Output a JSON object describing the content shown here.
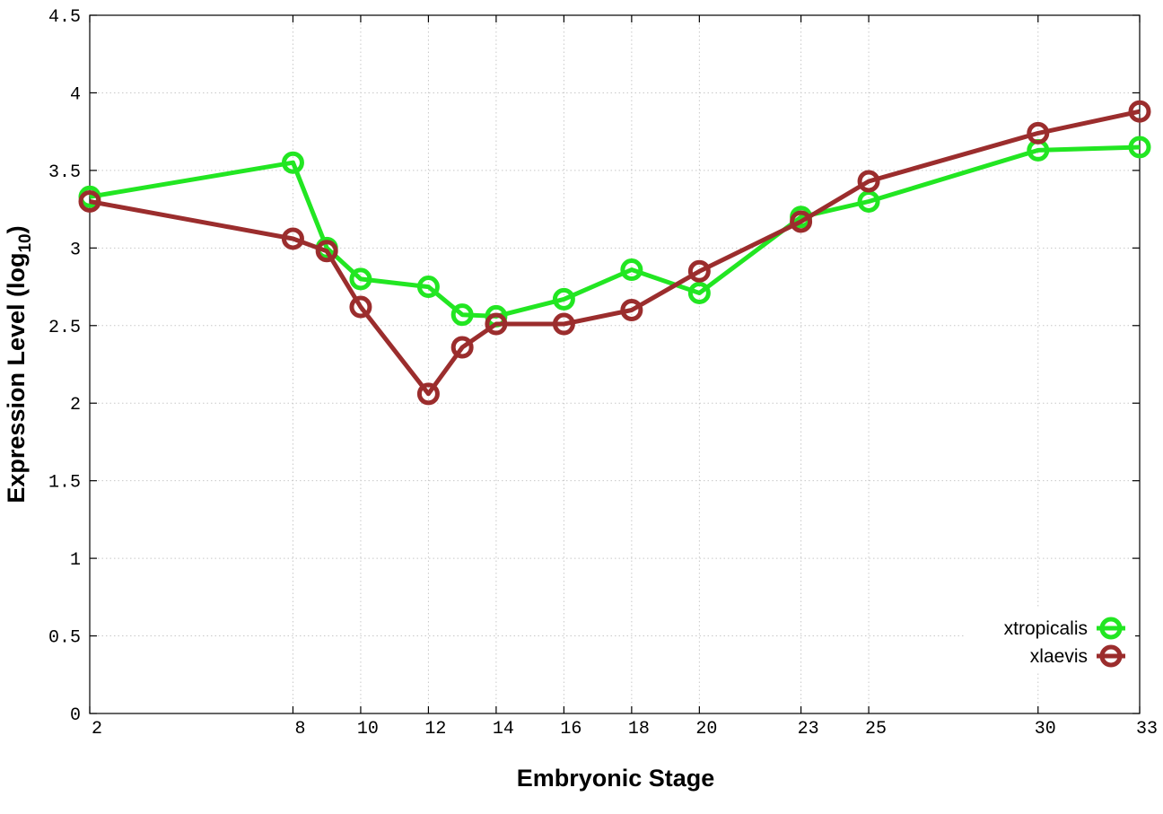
{
  "chart_data": {
    "type": "line",
    "xlabel": "Embryonic Stage",
    "ylabel_main": "Expression Level (log",
    "ylabel_sub": "10",
    "ylabel_close": ")",
    "xlim": [
      2,
      33
    ],
    "ylim": [
      0,
      4.5
    ],
    "xticks": [
      2,
      8,
      10,
      12,
      14,
      16,
      18,
      20,
      23,
      25,
      30,
      33
    ],
    "yticks": [
      {
        "value": 0,
        "label": "0"
      },
      {
        "value": 0.5,
        "label": "0.5"
      },
      {
        "value": 1,
        "label": "1"
      },
      {
        "value": 1.5,
        "label": "1.5"
      },
      {
        "value": 2,
        "label": "2"
      },
      {
        "value": 2.5,
        "label": "2.5"
      },
      {
        "value": 3,
        "label": "3"
      },
      {
        "value": 3.5,
        "label": "3.5"
      },
      {
        "value": 4,
        "label": "4"
      },
      {
        "value": 4.5,
        "label": "4.5"
      }
    ],
    "grid": true,
    "legend_position": "bottom-right",
    "x": [
      2,
      8,
      9,
      10,
      12,
      13,
      14,
      16,
      18,
      20,
      23,
      25,
      30,
      33
    ],
    "series": [
      {
        "name": "xtropicalis",
        "color": "#22e622",
        "values": [
          3.33,
          3.55,
          3.0,
          2.8,
          2.75,
          2.57,
          2.56,
          2.67,
          2.86,
          2.71,
          3.2,
          3.3,
          3.63,
          3.65
        ]
      },
      {
        "name": "xlaevis",
        "color": "#9b2d2d",
        "values": [
          3.3,
          3.06,
          2.98,
          2.62,
          2.06,
          2.36,
          2.51,
          2.51,
          2.6,
          2.85,
          3.17,
          3.43,
          3.74,
          3.88
        ]
      }
    ]
  }
}
